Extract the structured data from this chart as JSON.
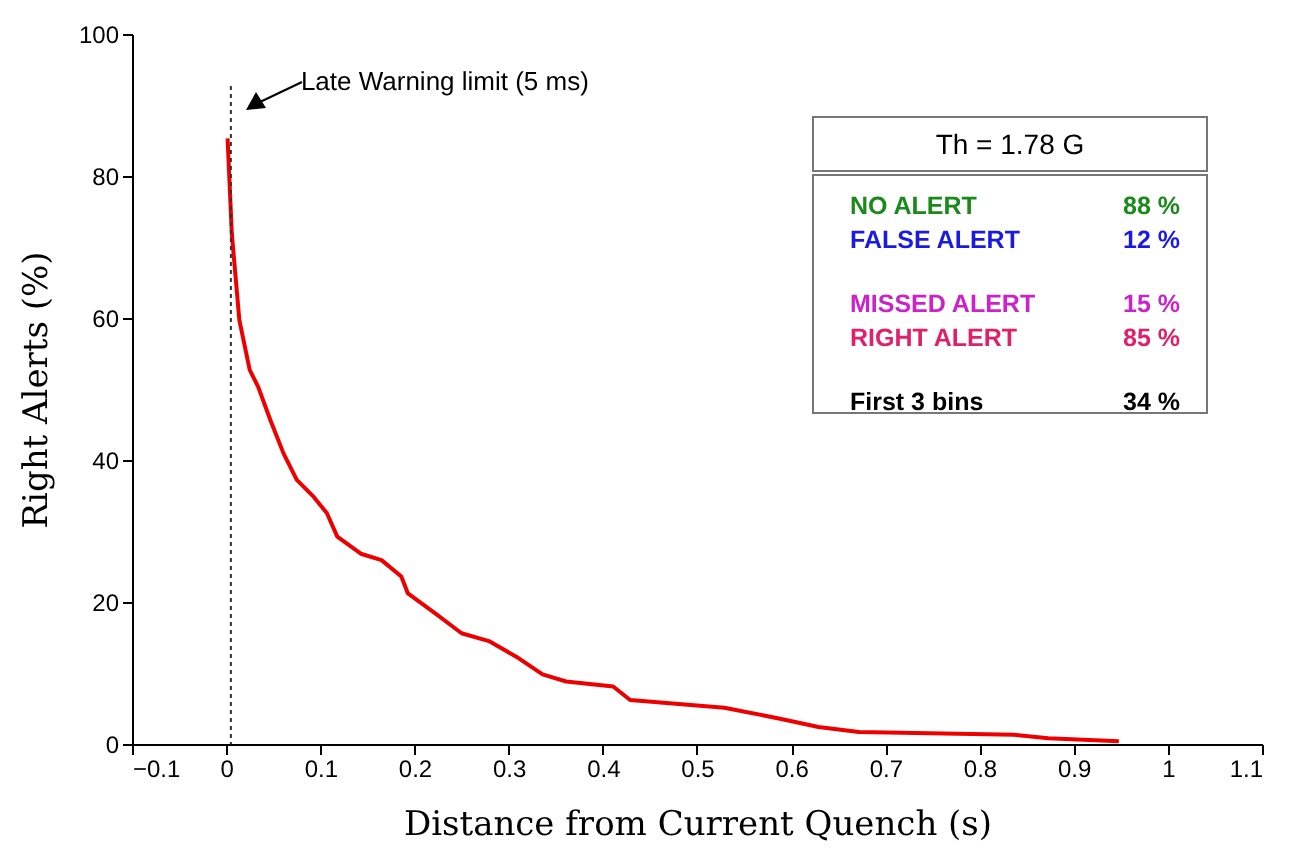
{
  "chart_data": {
    "type": "line",
    "xlabel": "Distance from Current Quench (s)",
    "ylabel": "Right Alerts (%)",
    "x": [
      0.0015,
      0.006,
      0.014,
      0.025,
      0.034,
      0.047,
      0.061,
      0.075,
      0.093,
      0.107,
      0.118,
      0.143,
      0.165,
      0.186,
      0.193,
      0.222,
      0.25,
      0.279,
      0.308,
      0.336,
      0.361,
      0.411,
      0.429,
      0.529,
      0.587,
      0.629,
      0.672,
      0.837,
      0.873,
      0.948
    ],
    "series": [
      {
        "color": "#ee0000",
        "values": [
          85.3,
          71.9,
          59.7,
          52.7,
          50.3,
          45.6,
          40.9,
          37.2,
          34.8,
          32.5,
          29.2,
          26.8,
          25.9,
          23.6,
          21.2,
          18.4,
          15.6,
          14.5,
          12.3,
          9.8,
          8.8,
          8.1,
          6.2,
          5.1,
          3.6,
          2.4,
          1.7,
          1.3,
          0.8,
          0.4
        ]
      }
    ],
    "xlim": [
      -0.1,
      1.1
    ],
    "xticks": [
      -0.1,
      0,
      0.1,
      0.2,
      0.3,
      0.4,
      0.5,
      0.6,
      0.7,
      0.8,
      0.9,
      1,
      1.1
    ],
    "ylim": [
      0,
      100
    ],
    "yticks": [
      0,
      20,
      40,
      60,
      80,
      100
    ],
    "ref_lines": [
      {
        "axis": "x",
        "value": 0.005,
        "label": "Late Warning limit (5 ms)",
        "line_style": "dotted",
        "color": "#333333"
      }
    ],
    "annotations": [
      "Th = 1.78 G",
      "NO ALERT",
      "88 %",
      "FALSE ALERT",
      "12 %",
      "MISSED ALERT",
      "15 %",
      "RIGHT ALERT",
      "85 %",
      "First 3 bins",
      "34 %"
    ],
    "grid": false,
    "marker": "none",
    "line_style": "solid"
  }
}
